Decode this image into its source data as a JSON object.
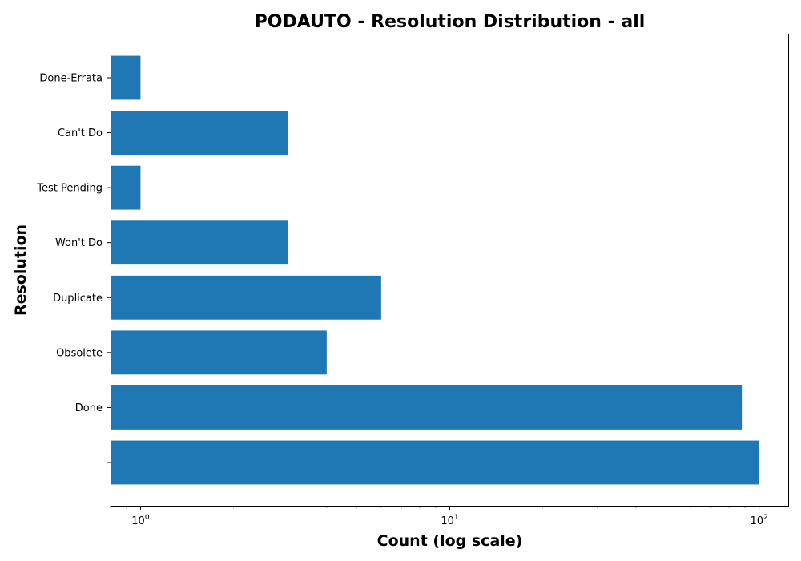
{
  "chart_data": {
    "type": "bar",
    "orientation": "horizontal",
    "title": "PODAUTO - Resolution Distribution - all",
    "xlabel": "Count (log scale)",
    "ylabel": "Resolution",
    "x_scale": "log",
    "xlim": [
      0.8,
      125
    ],
    "x_ticks": [
      {
        "value": 1,
        "base": "10",
        "exp": "0"
      },
      {
        "value": 10,
        "base": "10",
        "exp": "1"
      },
      {
        "value": 100,
        "base": "10",
        "exp": "2"
      }
    ],
    "categories": [
      "",
      "Done",
      "Obsolete",
      "Duplicate",
      "Won't Do",
      "Test Pending",
      "Can't Do",
      "Done-Errata"
    ],
    "values": [
      100,
      88,
      4,
      6,
      3,
      1,
      3,
      1
    ],
    "grid": false,
    "bar_color": "#1f77b4"
  }
}
